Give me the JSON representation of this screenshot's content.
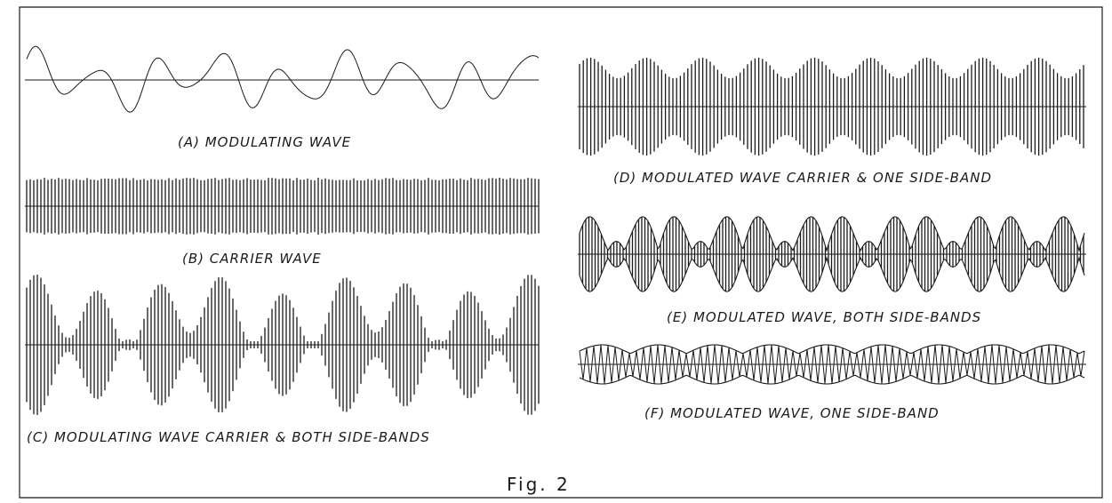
{
  "figure": {
    "label": "Fig. 2",
    "panels": [
      {
        "id": "A",
        "caption": "(A)   MODULATING WAVE"
      },
      {
        "id": "B",
        "caption": "(B)   CARRIER WAVE"
      },
      {
        "id": "C",
        "caption": "(C) MODULATING WAVE CARRIER & BOTH SIDE-BANDS"
      },
      {
        "id": "D",
        "caption": "(D) MODULATED WAVE CARRIER & ONE SIDE-BAND"
      },
      {
        "id": "E",
        "caption": "(E) MODULATED WAVE, BOTH SIDE-BANDS"
      },
      {
        "id": "F",
        "caption": "(F)  MODULATED WAVE, ONE SIDE-BAND"
      }
    ]
  }
}
